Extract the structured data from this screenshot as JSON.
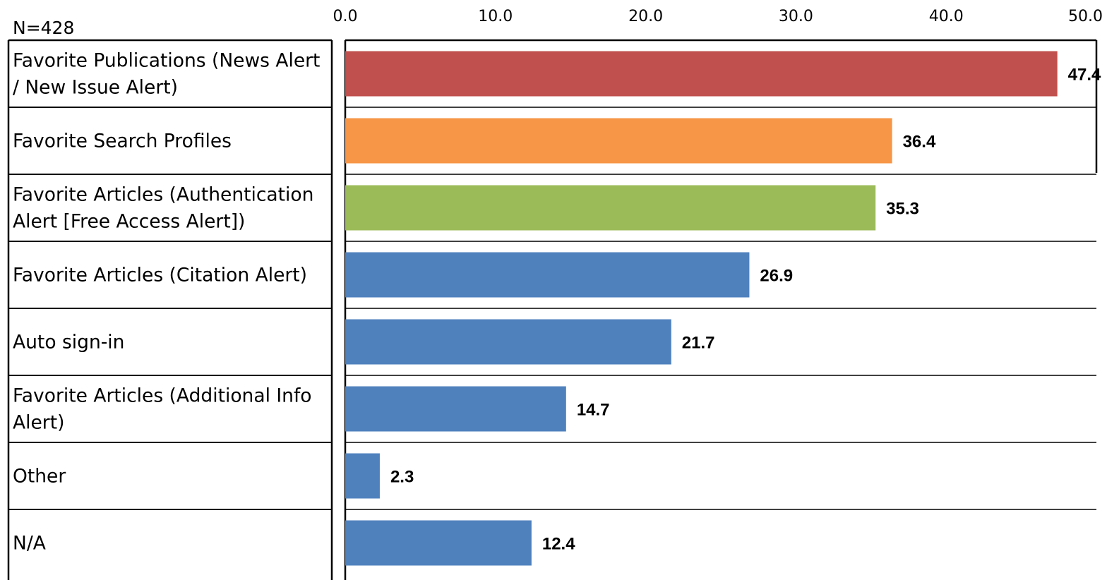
{
  "chart_data": {
    "type": "bar",
    "orientation": "horizontal",
    "n_label": "N=428",
    "categories": [
      [
        "Favorite Publications (News Alert",
        "/ New Issue Alert)"
      ],
      [
        "Favorite Search Profiles"
      ],
      [
        "Favorite Articles (Authentication",
        "Alert [Free Access Alert])"
      ],
      [
        "Favorite Articles (Citation Alert)"
      ],
      [
        "Auto sign-in"
      ],
      [
        "Favorite Articles (Additional Info",
        "Alert)"
      ],
      [
        "Other"
      ],
      [
        "N/A"
      ]
    ],
    "values": [
      47.4,
      36.4,
      35.3,
      26.9,
      21.7,
      14.7,
      2.3,
      12.4
    ],
    "value_labels": [
      "47.4",
      "36.4",
      "35.3",
      "26.9",
      "21.7",
      "14.7",
      "2.3",
      "12.4"
    ],
    "bar_colors": [
      "#c0504d",
      "#f79646",
      "#9bbb59",
      "#4f81bd",
      "#4f81bd",
      "#4f81bd",
      "#4f81bd",
      "#4f81bd"
    ],
    "xlim": [
      0,
      50
    ],
    "xticks": [
      "0.0",
      "10.0",
      "20.0",
      "30.0",
      "40.0",
      "50.0"
    ],
    "title": "",
    "xlabel": "",
    "ylabel": "",
    "grid": "horizontal row separators",
    "legend": "none"
  }
}
